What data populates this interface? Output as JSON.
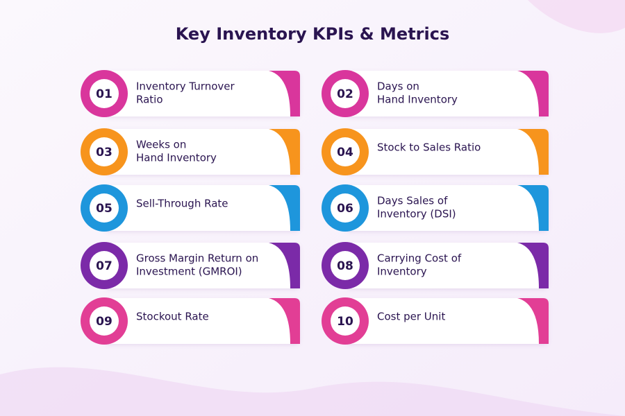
{
  "title": "Key Inventory KPIs & Metrics",
  "items": [
    {
      "number": "01",
      "lines": [
        "Inventory Turnover",
        "Ratio"
      ],
      "color": "#d9369c"
    },
    {
      "number": "02",
      "lines": [
        "Days on",
        "Hand Inventory"
      ],
      "color": "#d9369c"
    },
    {
      "number": "03",
      "lines": [
        "Weeks on",
        "Hand Inventory"
      ],
      "color": "#f7941d"
    },
    {
      "number": "04",
      "lines": [
        "Stock to Sales Ratio"
      ],
      "color": "#f7941d"
    },
    {
      "number": "05",
      "lines": [
        "Sell-Through Rate"
      ],
      "color": "#1e96dc"
    },
    {
      "number": "06",
      "lines": [
        "Days Sales of",
        "Inventory (DSI)"
      ],
      "color": "#1e96dc"
    },
    {
      "number": "07",
      "lines": [
        "Gross Margin Return on",
        "Investment (GMROI)"
      ],
      "color": "#7b2aa8"
    },
    {
      "number": "08",
      "lines": [
        "Carrying Cost of",
        "Inventory"
      ],
      "color": "#7b2aa8"
    },
    {
      "number": "09",
      "lines": [
        "Stockout Rate"
      ],
      "color": "#e23e95"
    },
    {
      "number": "10",
      "lines": [
        "Cost per Unit"
      ],
      "color": "#e23e95"
    }
  ]
}
